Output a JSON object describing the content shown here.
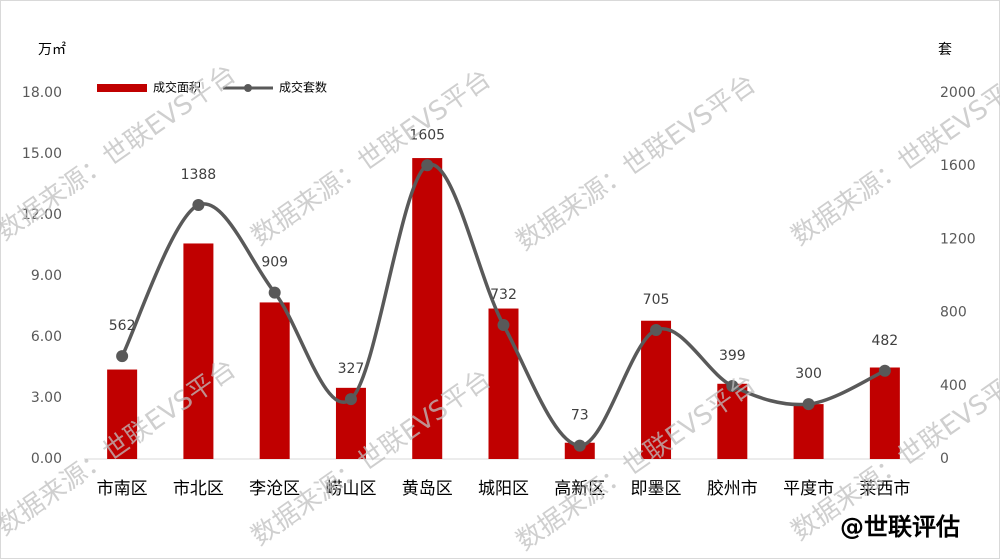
{
  "chart_data": {
    "type": "bar-line",
    "y_label": "万㎡",
    "y2_label": "套",
    "categories": [
      "市南区",
      "市北区",
      "李沧区",
      "崂山区",
      "黄岛区",
      "城阳区",
      "高新区",
      "即墨区",
      "胶州市",
      "平度市",
      "莱西市"
    ],
    "series": [
      {
        "name": "成交面积",
        "color": "#c00000",
        "type": "bar",
        "values": [
          4.4,
          10.6,
          7.7,
          3.5,
          14.8,
          7.4,
          0.8,
          6.8,
          3.7,
          2.7,
          4.5
        ]
      },
      {
        "name": "成交套数",
        "color": "#595959",
        "type": "line",
        "axis": "y2",
        "values": [
          562,
          1388,
          909,
          327,
          1605,
          732,
          73,
          705,
          399,
          300,
          482
        ]
      }
    ],
    "ylim": [
      0,
      18
    ],
    "yticks": [
      {
        "value": 0,
        "label": "0.00"
      },
      {
        "value": 3,
        "label": "3.00"
      },
      {
        "value": 6,
        "label": "6.00"
      },
      {
        "value": 9,
        "label": "9.00"
      },
      {
        "value": 12,
        "label": "12.00"
      },
      {
        "value": 15,
        "label": "15.00"
      },
      {
        "value": 18,
        "label": "18.00"
      }
    ],
    "y2lim": [
      0,
      2000
    ],
    "y2ticks": [
      0,
      400,
      800,
      1200,
      1600,
      2000
    ],
    "legend": "top-left"
  },
  "watermark": "数据来源：世联EVS平台",
  "brand": "@世联评估"
}
